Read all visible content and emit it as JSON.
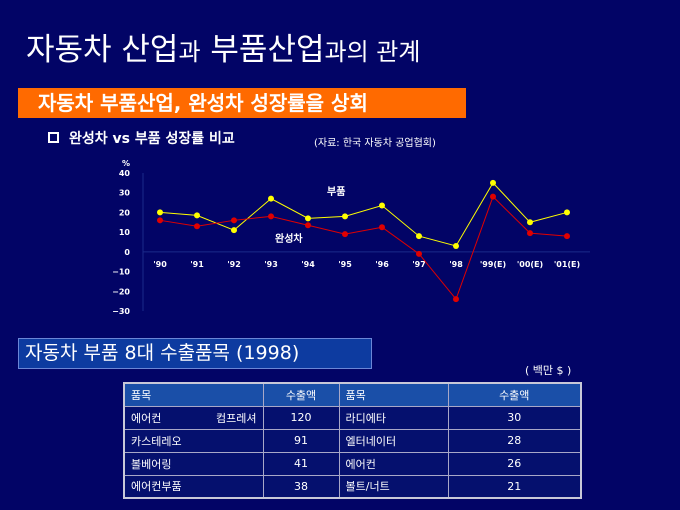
{
  "title": {
    "p1": "자동차 산업",
    "p2": "과",
    "p3": " 부품산업",
    "p4": "과의 관계"
  },
  "banner": "자동차 부품산업, 완성차 성장률을 상회",
  "subtitle": "완성차 vs 부품 성장률 비교",
  "source": "(자료: 한국 자동차 공업협회)",
  "chart_data": {
    "type": "line",
    "ylabel": "%",
    "ylim": [
      -30,
      40
    ],
    "yticks": [
      "40",
      "30",
      "20",
      "10",
      "0",
      "−10",
      "−20",
      "−30"
    ],
    "categories": [
      "'90",
      "'91",
      "'92",
      "'93",
      "'94",
      "'95",
      "'96",
      "'97",
      "'98",
      "'99(E)",
      "'00(E)",
      "'01(E)"
    ],
    "series": [
      {
        "name": "부품",
        "color": "#ffff00",
        "values": [
          20,
          18.5,
          11,
          27,
          17,
          18,
          23.5,
          8,
          3,
          35,
          15,
          20
        ]
      },
      {
        "name": "완성차",
        "color": "#e00000",
        "values": [
          16,
          13,
          16,
          18,
          13.5,
          9,
          12.5,
          -1,
          -24,
          28,
          9.5,
          8
        ]
      }
    ]
  },
  "section2": "자동차 부품 8대 수출품목 (1998)",
  "unit": "( 백만 $ )",
  "table": {
    "headers": [
      "품목",
      "수출액",
      "품목",
      "수출액"
    ],
    "rows": [
      [
        "에어컨 컴프레셔",
        "120",
        "라디에타",
        "30"
      ],
      [
        "카스테레오",
        "91",
        "엘터네이터",
        "28"
      ],
      [
        "볼베어링",
        "41",
        "에어컨",
        "26"
      ],
      [
        "에어컨부품",
        "38",
        "볼트/너트",
        "21"
      ]
    ]
  }
}
